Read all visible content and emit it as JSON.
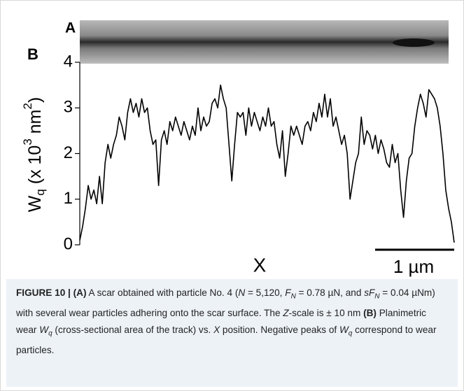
{
  "panel_a": {
    "label": "A"
  },
  "chart_data": {
    "type": "line",
    "panel_label": "B",
    "ylabel_parts": [
      "W",
      "q",
      " (x 10",
      "3",
      " nm",
      "2",
      ")"
    ],
    "xlabel": "X",
    "scale_bar": "1 µm",
    "color": "#000000",
    "ylim": [
      0,
      4
    ],
    "yticks": [
      0,
      1,
      2,
      3,
      4
    ],
    "values": [
      0.1,
      0.4,
      0.8,
      1.3,
      1.0,
      1.2,
      0.9,
      1.5,
      0.9,
      1.8,
      2.2,
      1.9,
      2.2,
      2.4,
      2.8,
      2.6,
      2.3,
      2.9,
      3.2,
      2.9,
      3.1,
      2.8,
      3.2,
      2.9,
      3.0,
      2.5,
      2.2,
      2.3,
      1.3,
      2.3,
      2.5,
      2.2,
      2.7,
      2.5,
      2.8,
      2.6,
      2.4,
      2.7,
      2.5,
      2.3,
      2.6,
      2.4,
      3.0,
      2.5,
      2.8,
      2.6,
      2.7,
      3.1,
      3.2,
      3.0,
      3.5,
      3.2,
      3.0,
      2.2,
      1.4,
      2.2,
      2.9,
      2.8,
      2.9,
      2.4,
      3.0,
      2.6,
      2.9,
      2.7,
      2.5,
      2.8,
      2.6,
      3.0,
      2.6,
      2.7,
      2.2,
      1.9,
      2.5,
      1.5,
      2.0,
      2.6,
      2.4,
      2.6,
      2.4,
      2.2,
      2.6,
      2.7,
      2.5,
      2.9,
      2.7,
      3.1,
      2.8,
      3.3,
      2.8,
      3.2,
      2.6,
      2.8,
      2.5,
      2.2,
      2.4,
      2.0,
      1.0,
      1.4,
      1.8,
      2.0,
      2.8,
      2.2,
      2.5,
      2.4,
      2.1,
      2.4,
      2.0,
      2.3,
      2.1,
      1.8,
      1.7,
      2.2,
      1.8,
      2.0,
      1.2,
      0.6,
      1.4,
      1.9,
      2.0,
      2.6,
      3.0,
      3.3,
      3.1,
      2.8,
      3.4,
      3.3,
      3.2,
      3.0,
      2.6,
      2.0,
      1.2,
      0.8,
      0.5,
      0.05
    ]
  },
  "caption": [
    "FIGURE 10 | (A)",
    " A scar obtained with particle No. 4 (",
    "N",
    " = 5,120, ",
    "F",
    "N",
    " = 0.78 µN, and ",
    "sF",
    "N",
    " = 0.04 µNm) with several wear particles adhering onto the scar surface. The ",
    "Z",
    "-scale is ± 10 nm ",
    "(B)",
    " Planimetric wear ",
    "W",
    "q",
    " (cross-sectional area of the track) vs. ",
    "X",
    " position. Negative peaks of ",
    "W",
    "q",
    " correspond to wear particles."
  ]
}
